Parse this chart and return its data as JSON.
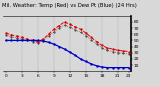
{
  "title": "Mil. Weather: Temp (Red) vs Dew Pt (Blue) (24 Hrs)",
  "background_color": "#d8d8d8",
  "plot_bg": "#d8d8d8",
  "hours": [
    0,
    1,
    2,
    3,
    4,
    5,
    6,
    7,
    8,
    9,
    10,
    11,
    12,
    13,
    14,
    15,
    16,
    17,
    18,
    19,
    20,
    21,
    22,
    23
  ],
  "temp": [
    62,
    59,
    57,
    55,
    52,
    50,
    48,
    52,
    60,
    68,
    74,
    80,
    76,
    72,
    68,
    62,
    55,
    48,
    42,
    38,
    36,
    34,
    33,
    32
  ],
  "dewpoint": [
    50,
    50,
    50,
    50,
    50,
    50,
    50,
    49,
    47,
    44,
    40,
    36,
    31,
    26,
    20,
    16,
    12,
    9,
    7,
    6,
    6,
    6,
    6,
    6
  ],
  "feels_like": [
    58,
    56,
    54,
    52,
    50,
    48,
    46,
    50,
    57,
    64,
    70,
    75,
    71,
    67,
    63,
    57,
    51,
    44,
    38,
    34,
    32,
    30,
    29,
    28
  ],
  "temp_color": "#dd0000",
  "dewpoint_color": "#0000cc",
  "feels_like_color": "#333333",
  "ylim": [
    0,
    90
  ],
  "ytick_values": [
    10,
    20,
    30,
    40,
    50,
    60,
    70,
    80
  ],
  "ytick_labels": [
    "10",
    "20",
    "30",
    "40",
    "50",
    "60",
    "70",
    "80"
  ],
  "xtick_values": [
    0,
    3,
    6,
    9,
    12,
    15,
    18,
    21,
    23
  ],
  "grid_color": "#888888",
  "vgrid_positions": [
    3,
    6,
    9,
    12,
    15,
    18,
    21
  ],
  "title_fontsize": 3.8,
  "tick_fontsize": 3.2,
  "line_lw_temp": 0.7,
  "line_lw_dew": 0.9,
  "line_lw_feels": 0.5
}
